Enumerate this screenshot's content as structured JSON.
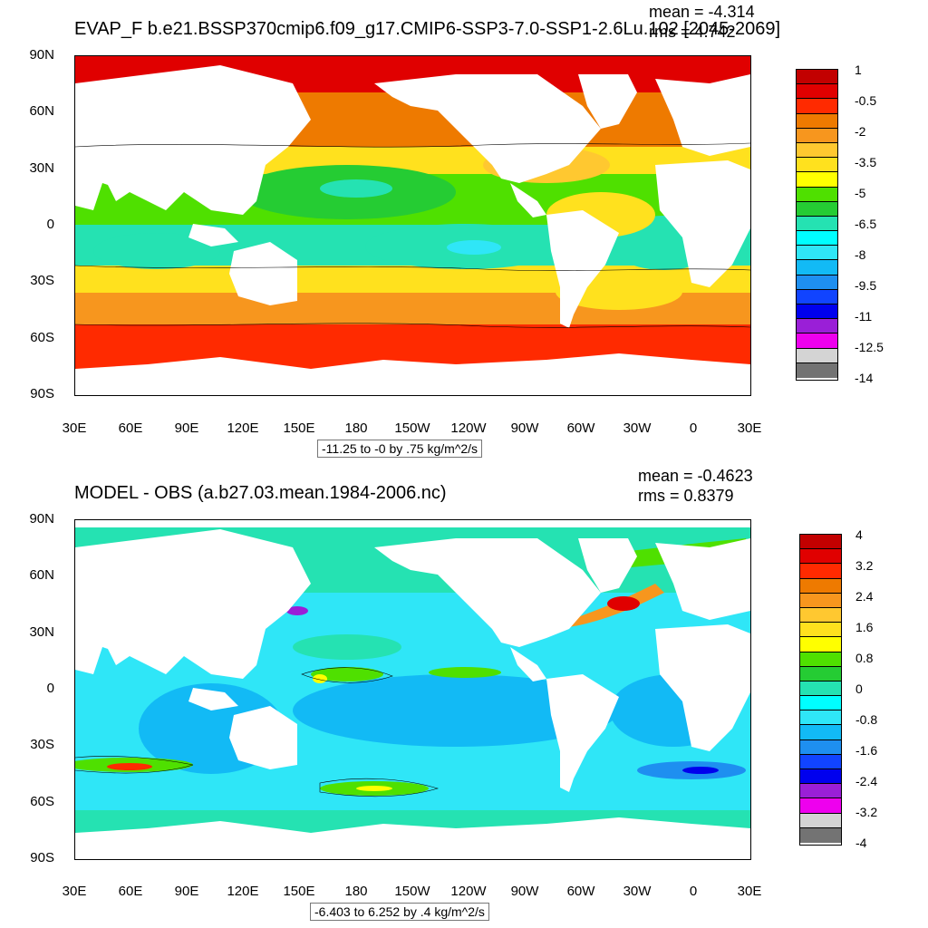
{
  "panel1": {
    "title": "EVAP_F b.e21.BSSP370cmip6.f09_g17.CMIP6-SSP3-7.0-SSP1-2.6Lu.102 [2045-2069]",
    "mean": "mean = -4.314",
    "rms": "rms = 4.742",
    "subtitle": "-11.25 to -0 by .75 kg/m^2/s",
    "lat_labels": [
      "90N",
      "60N",
      "30N",
      "0",
      "30S",
      "60S",
      "90S"
    ],
    "lon_labels": [
      "30E",
      "60E",
      "90E",
      "120E",
      "150E",
      "180",
      "150W",
      "120W",
      "90W",
      "60W",
      "30W",
      "0",
      "30E"
    ],
    "colorbar": {
      "labels": [
        "1",
        "-0.5",
        "-2",
        "-3.5",
        "-5",
        "-6.5",
        "-8",
        "-9.5",
        "-11",
        "-12.5",
        "-14"
      ],
      "colors": [
        "#c20000",
        "#e00000",
        "#ff2a00",
        "#ee7a00",
        "#f7961e",
        "#ffc830",
        "#ffe11e",
        "#ffff00",
        "#4fe000",
        "#25cc33",
        "#25e2b2",
        "#00ffff",
        "#2fe6f7",
        "#12baf5",
        "#1e8ff0",
        "#1144ff",
        "#0000ee",
        "#9a1fd7",
        "#ee00ee",
        "#d4d4d4",
        "#737373"
      ]
    }
  },
  "panel2": {
    "title": "MODEL - OBS (a.b27.03.mean.1984-2006.nc)",
    "mean": "mean = -0.4623",
    "rms": "rms = 0.8379",
    "subtitle": "-6.403 to 6.252 by .4 kg/m^2/s",
    "lat_labels": [
      "90N",
      "60N",
      "30N",
      "0",
      "30S",
      "60S",
      "90S"
    ],
    "lon_labels": [
      "30E",
      "60E",
      "90E",
      "120E",
      "150E",
      "180",
      "150W",
      "120W",
      "90W",
      "60W",
      "30W",
      "0",
      "30E"
    ],
    "colorbar": {
      "labels": [
        "4",
        "3.2",
        "2.4",
        "1.6",
        "0.8",
        "0",
        "-0.8",
        "-1.6",
        "-2.4",
        "-3.2",
        "-4"
      ],
      "colors": [
        "#c20000",
        "#e00000",
        "#ff2a00",
        "#ee7a00",
        "#f7961e",
        "#ffc830",
        "#ffe11e",
        "#ffff00",
        "#4fe000",
        "#25cc33",
        "#25e2b2",
        "#00ffff",
        "#2fe6f7",
        "#12baf5",
        "#1e8ff0",
        "#1144ff",
        "#0000ee",
        "#9a1fd7",
        "#ee00ee",
        "#d4d4d4",
        "#737373"
      ]
    }
  }
}
